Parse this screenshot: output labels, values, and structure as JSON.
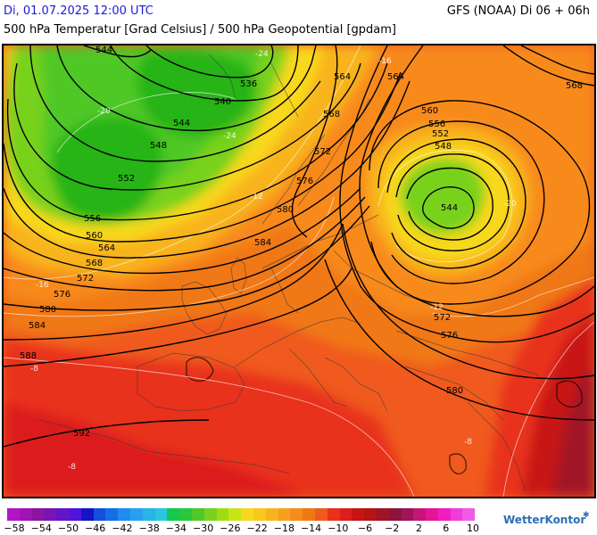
{
  "header": {
    "date": "Di, 01.07.2025 12:00 UTC",
    "model": "GFS (NOAA) Di 06 + 06h",
    "subtitle": "500 hPa Temperatur [Grad Celsius] / 500 hPa Geopotential [gpdam]"
  },
  "map": {
    "geopotential_labels": [
      "544",
      "536",
      "540",
      "544",
      "548",
      "552",
      "556",
      "560",
      "564",
      "568",
      "572",
      "576",
      "580",
      "584",
      "588",
      "592",
      "564",
      "564",
      "568",
      "568",
      "572",
      "576",
      "580",
      "584",
      "560",
      "556",
      "552",
      "548",
      "544",
      "572",
      "576",
      "580"
    ],
    "temperature_labels": [
      "-24",
      "-20",
      "-16",
      "-12",
      "-8",
      "-8",
      "-8",
      "-12",
      "-16",
      "-20",
      "-24"
    ],
    "colors": {
      "deep_red": "#c0141c",
      "red": "#e8301a",
      "orange_red": "#f05a1e",
      "orange": "#f88a1e",
      "yellow_orange": "#f8b41e",
      "yellow": "#f8d81e",
      "green": "#58c81e",
      "dark_green": "#28b414"
    }
  },
  "legend": {
    "ticks": [
      "-58",
      "-54",
      "-50",
      "-46",
      "-42",
      "-38",
      "-34",
      "-30",
      "-26",
      "-22",
      "-18",
      "-14",
      "-10",
      "-6",
      "-2",
      "2",
      "6",
      "10"
    ],
    "colors": [
      "#b414c8",
      "#a014b4",
      "#8c14a0",
      "#7814b4",
      "#6414c8",
      "#5014dc",
      "#1414c8",
      "#1450dc",
      "#146ee6",
      "#1e8cf0",
      "#28a0f0",
      "#28b4e6",
      "#28c8dc",
      "#14c850",
      "#28c83c",
      "#50c828",
      "#78d21e",
      "#a0dc14",
      "#c8e614",
      "#f8d81e",
      "#f8c81e",
      "#f8b41e",
      "#f8a01e",
      "#f88a1e",
      "#f07814",
      "#f05a1e",
      "#e8301a",
      "#dc1e1e",
      "#c81414",
      "#b41414",
      "#a01428",
      "#8c143c",
      "#a0145a",
      "#c81478",
      "#e61496",
      "#f01ebe",
      "#f03cdc",
      "#f05ae6"
    ],
    "brand": "WetterKontor"
  }
}
